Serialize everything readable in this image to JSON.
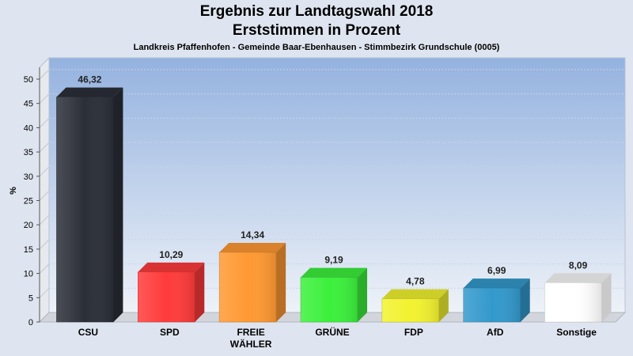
{
  "header": {
    "title_line1": "Ergebnis zur Landtagswahl 2018",
    "title_line2": "Erststimmen in Prozent",
    "subtitle": "Landkreis Pfaffenhofen - Gemeinde Baar-Ebenhausen - Stimmbezirk Grundschule (0005)"
  },
  "chart_data": {
    "type": "bar",
    "title": "Ergebnis zur Landtagswahl 2018 / Erststimmen in Prozent",
    "ylabel": "%",
    "xlabel": "",
    "ylim": [
      0,
      50
    ],
    "yticks": [
      0,
      5,
      10,
      15,
      20,
      25,
      30,
      35,
      40,
      45,
      50
    ],
    "grid": true,
    "categories": [
      "CSU",
      "SPD",
      "FREIE WÄHLER",
      "GRÜNE",
      "FDP",
      "AfD",
      "Sonstige"
    ],
    "category_lines": [
      [
        "CSU"
      ],
      [
        "SPD"
      ],
      [
        "FREIE",
        "WÄHLER"
      ],
      [
        "GRÜNE"
      ],
      [
        "FDP"
      ],
      [
        "AfD"
      ],
      [
        "Sonstige"
      ]
    ],
    "values": [
      46.32,
      10.29,
      14.34,
      9.19,
      4.78,
      6.99,
      8.09
    ],
    "value_labels": [
      "46,32",
      "10,29",
      "14,34",
      "9,19",
      "4,78",
      "6,99",
      "8,09"
    ],
    "colors": [
      "#2b2f38",
      "#ff3b3b",
      "#ff9933",
      "#3cf03c",
      "#f2f230",
      "#3399cc",
      "#ffffff"
    ]
  }
}
